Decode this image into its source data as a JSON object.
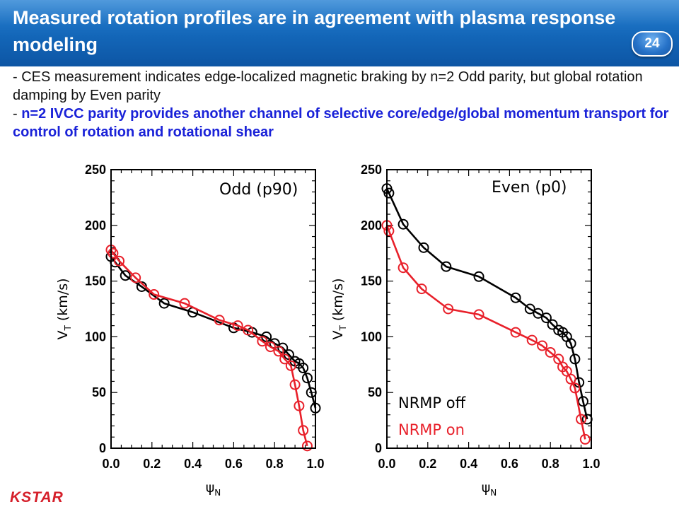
{
  "header": {
    "title": "Measured rotation profiles are in agreement with plasma response modeling",
    "page_number": "24"
  },
  "bullets": {
    "b1": "- CES measurement indicates edge-localized magnetic braking by n=2 Odd parity, but global rotation damping by Even parity",
    "b2_prefix": "- ",
    "b2": "n=2 IVCC parity provides another channel of selective core/edge/global momentum transport for control of rotation and rotational shear"
  },
  "footer": {
    "logo": "KSTAR"
  },
  "colors": {
    "header": "#1468ba",
    "highlight": "#1a22d8",
    "off": "#000000",
    "on": "#e8202a"
  },
  "chart_data": [
    {
      "type": "line",
      "panel_label": "Odd (p90)",
      "xlabel": "ψN",
      "ylabel": "VT (km/s)",
      "xlim": [
        0,
        1
      ],
      "ylim": [
        0,
        250
      ],
      "xticks": [
        "0.0",
        "0.2",
        "0.4",
        "0.6",
        "0.8",
        "1.0"
      ],
      "yticks": [
        "0",
        "50",
        "100",
        "150",
        "200",
        "250"
      ],
      "series": [
        {
          "name": "NRMP off",
          "color": "#000000",
          "x": [
            0.0,
            0.02,
            0.07,
            0.15,
            0.26,
            0.4,
            0.6,
            0.69,
            0.76,
            0.8,
            0.84,
            0.87,
            0.9,
            0.92,
            0.94,
            0.96,
            0.98,
            1.0
          ],
          "y": [
            172,
            167,
            155,
            145,
            130,
            122,
            108,
            104,
            100,
            94,
            90,
            84,
            78,
            76,
            72,
            63,
            50,
            36
          ]
        },
        {
          "name": "NRMP on",
          "color": "#e8202a",
          "x": [
            0.0,
            0.01,
            0.04,
            0.12,
            0.21,
            0.36,
            0.53,
            0.62,
            0.67,
            0.74,
            0.78,
            0.82,
            0.85,
            0.88,
            0.9,
            0.92,
            0.94,
            0.96
          ],
          "y": [
            178,
            175,
            168,
            153,
            138,
            130,
            115,
            110,
            106,
            96,
            91,
            87,
            80,
            74,
            57,
            38,
            16,
            2
          ]
        }
      ]
    },
    {
      "type": "line",
      "panel_label": "Even (p0)",
      "xlabel": "ψN",
      "ylabel": "VT (km/s)",
      "xlim": [
        0,
        1
      ],
      "ylim": [
        0,
        250
      ],
      "xticks": [
        "0.0",
        "0.2",
        "0.4",
        "0.6",
        "0.8",
        "1.0"
      ],
      "yticks": [
        "0",
        "50",
        "100",
        "150",
        "200",
        "250"
      ],
      "legend": [
        "NRMP off",
        "NRMP on"
      ],
      "series": [
        {
          "name": "NRMP off",
          "color": "#000000",
          "x": [
            0.0,
            0.01,
            0.08,
            0.18,
            0.29,
            0.45,
            0.63,
            0.7,
            0.74,
            0.78,
            0.81,
            0.84,
            0.86,
            0.88,
            0.9,
            0.92,
            0.94,
            0.96,
            0.98
          ],
          "y": [
            233,
            229,
            201,
            180,
            163,
            154,
            135,
            125,
            121,
            117,
            111,
            106,
            104,
            100,
            94,
            80,
            59,
            42,
            26
          ]
        },
        {
          "name": "NRMP on",
          "color": "#e8202a",
          "x": [
            0.0,
            0.01,
            0.08,
            0.17,
            0.3,
            0.45,
            0.63,
            0.71,
            0.76,
            0.8,
            0.84,
            0.86,
            0.88,
            0.9,
            0.92,
            0.95,
            0.97
          ],
          "y": [
            200,
            195,
            162,
            143,
            125,
            120,
            104,
            97,
            92,
            86,
            80,
            73,
            69,
            62,
            54,
            26,
            8
          ]
        }
      ]
    }
  ]
}
